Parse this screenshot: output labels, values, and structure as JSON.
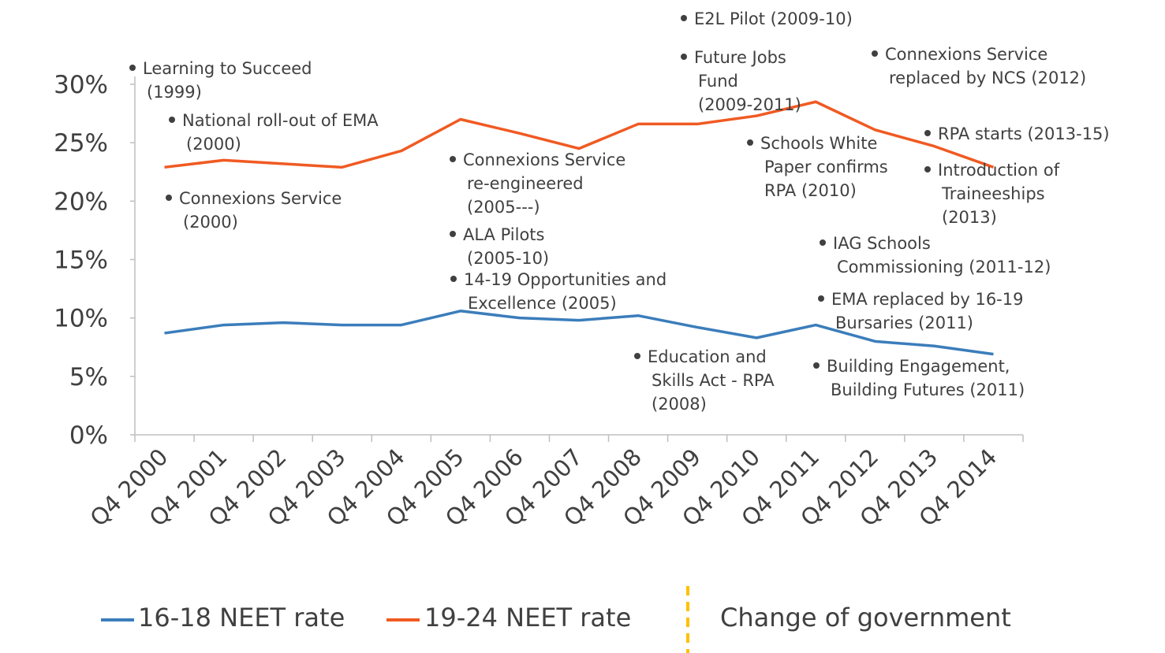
{
  "chart_data": {
    "type": "line",
    "title": "",
    "xlabel": "",
    "ylabel": "",
    "categories": [
      "Q4 2000",
      "Q4 2001",
      "Q4 2002",
      "Q4 2003",
      "Q4 2004",
      "Q4 2005",
      "Q4 2006",
      "Q4 2007",
      "Q4 2008",
      "Q4 2009",
      "Q4 2010",
      "Q4 2011",
      "Q4 2012",
      "Q4 2013",
      "Q4 2014"
    ],
    "ylim": [
      0,
      30
    ],
    "yticks": [
      0,
      5,
      10,
      15,
      20,
      25,
      30
    ],
    "ytick_labels": [
      "0%",
      "5%",
      "10%",
      "15%",
      "20%",
      "25%",
      "30%"
    ],
    "series": [
      {
        "name": "16-18 NEET rate",
        "color": "#3B7DBB",
        "values": [
          8.7,
          9.4,
          9.6,
          9.4,
          9.4,
          10.6,
          10.0,
          9.8,
          10.2,
          9.2,
          8.3,
          9.4,
          8.0,
          7.6,
          6.9
        ]
      },
      {
        "name": "19-24 NEET rate",
        "color": "#F05A22",
        "values": [
          22.9,
          23.5,
          23.2,
          22.9,
          24.3,
          27.0,
          25.8,
          24.5,
          26.6,
          26.6,
          27.3,
          28.5,
          26.1,
          24.7,
          22.9
        ]
      }
    ],
    "legend": {
      "placement": "bottom",
      "extra_entry": {
        "label": "Change of government",
        "color": "#FFC000",
        "style": "dashed"
      }
    },
    "grid": false,
    "annotations": [
      {
        "lines": [
          "Learning to Succeed",
          "(1999)"
        ]
      },
      {
        "lines": [
          "National roll-out of EMA",
          "(2000)"
        ]
      },
      {
        "lines": [
          "Connexions Service",
          "(2000)"
        ]
      },
      {
        "lines": [
          "Connexions Service",
          "re-engineered",
          "(2005---)"
        ]
      },
      {
        "lines": [
          "ALA Pilots",
          "(2005-10)"
        ]
      },
      {
        "lines": [
          "14-19 Opportunities and",
          "Excellence (2005)"
        ]
      },
      {
        "lines": [
          "E2L Pilot (2009-10)"
        ]
      },
      {
        "lines": [
          "Future Jobs",
          "Fund",
          "(2009-2011)"
        ]
      },
      {
        "lines": [
          "Education and",
          "Skills Act - RPA",
          "(2008)"
        ]
      },
      {
        "lines": [
          "Schools White",
          "Paper confirms",
          "RPA (2010)"
        ]
      },
      {
        "lines": [
          "Connexions Service",
          "replaced by NCS (2012)"
        ]
      },
      {
        "lines": [
          "RPA starts (2013-15)"
        ]
      },
      {
        "lines": [
          "Introduction of",
          "Traineeships",
          "(2013)"
        ]
      },
      {
        "lines": [
          "IAG Schools",
          "Commissioning (2011-12)"
        ]
      },
      {
        "lines": [
          "EMA replaced by 16-19",
          "Bursaries (2011)"
        ]
      },
      {
        "lines": [
          "Building Engagement,",
          "Building Futures (2011)"
        ]
      }
    ]
  }
}
